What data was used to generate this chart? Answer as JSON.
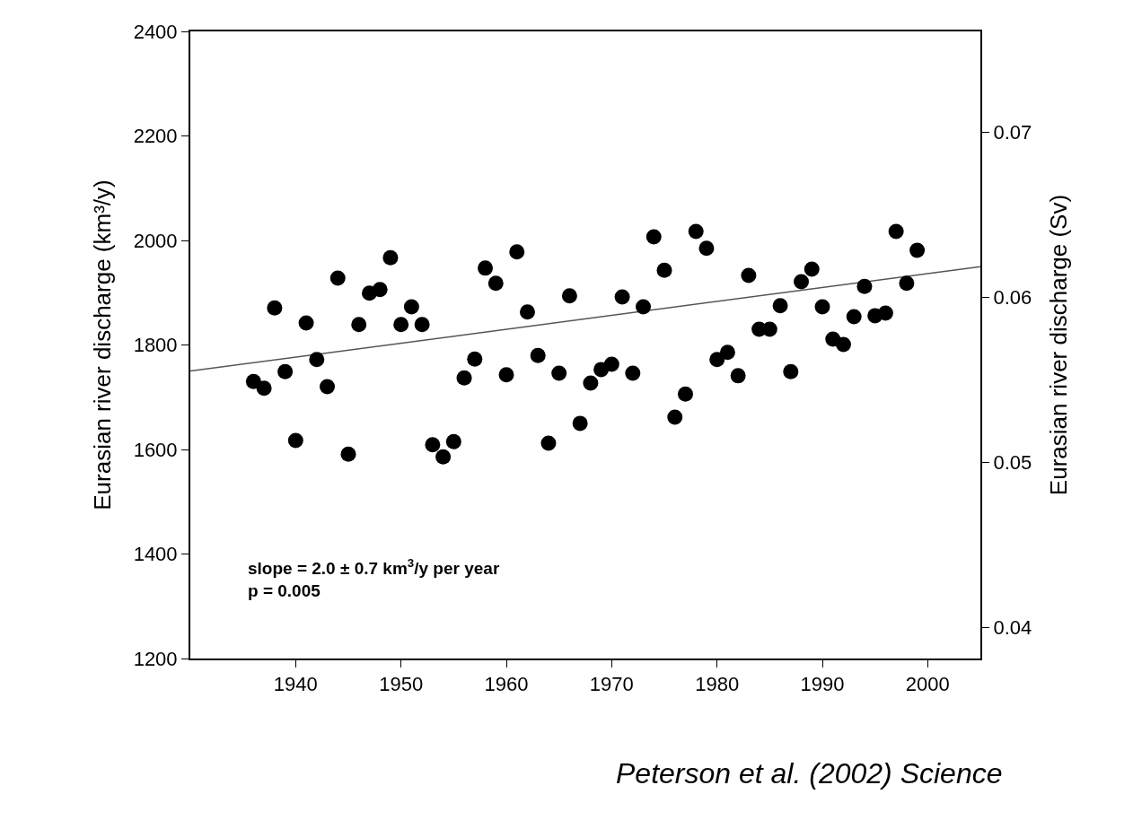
{
  "chart_data": {
    "type": "scatter",
    "xlabel": null,
    "ylabel": "Eurasian river discharge (km³/y)",
    "y2label": "Eurasian river discharge (Sv)",
    "x": [
      1936,
      1937,
      1938,
      1939,
      1940,
      1941,
      1942,
      1943,
      1944,
      1945,
      1946,
      1947,
      1948,
      1949,
      1950,
      1951,
      1952,
      1953,
      1954,
      1955,
      1956,
      1957,
      1958,
      1959,
      1960,
      1961,
      1962,
      1963,
      1964,
      1965,
      1966,
      1967,
      1968,
      1969,
      1970,
      1971,
      1972,
      1973,
      1974,
      1975,
      1976,
      1977,
      1978,
      1979,
      1980,
      1981,
      1982,
      1983,
      1984,
      1985,
      1986,
      1987,
      1988,
      1989,
      1990,
      1991,
      1992,
      1993,
      1994,
      1995,
      1996,
      1997,
      1998,
      1999
    ],
    "series": [
      {
        "color": "#000000",
        "marker": "circle",
        "values": [
          1730,
          1717,
          1871,
          1749,
          1617,
          1842,
          1772,
          1720,
          1928,
          1591,
          1839,
          1899,
          1906,
          1967,
          1839,
          1873,
          1839,
          1609,
          1586,
          1615,
          1737,
          1773,
          1947,
          1918,
          1743,
          1978,
          1863,
          1780,
          1612,
          1746,
          1894,
          1650,
          1727,
          1753,
          1763,
          1892,
          1746,
          1873,
          2007,
          1943,
          1662,
          1706,
          2017,
          1985,
          1772,
          1786,
          1741,
          1933,
          1830,
          1830,
          1875,
          1749,
          1921,
          1945,
          1873,
          1811,
          1801,
          1854,
          1912,
          1856,
          1861,
          2017,
          1918,
          1981
        ]
      },
      {
        "type": "line",
        "color": "#555555",
        "marker": "none",
        "line_style": "solid",
        "x": [
          1930,
          2005
        ],
        "values": [
          1750,
          1950
        ]
      }
    ],
    "xlim": [
      1930,
      2005
    ],
    "xticks": [
      1940,
      1950,
      1960,
      1970,
      1980,
      1990,
      2000
    ],
    "ylim": [
      1200,
      2400
    ],
    "yticks": [
      1200,
      1400,
      1600,
      1800,
      2000,
      2200,
      2400
    ],
    "y2lim": [
      0.0381,
      0.0761
    ],
    "y2ticks": [
      0.04,
      0.05,
      0.06,
      0.07
    ],
    "grid": false,
    "annotations": [
      "slope = 2.0 ± 0.7 km$^{3}$/y per year\np = 0.005",
      "Peterson et al. (2002) Science"
    ]
  }
}
